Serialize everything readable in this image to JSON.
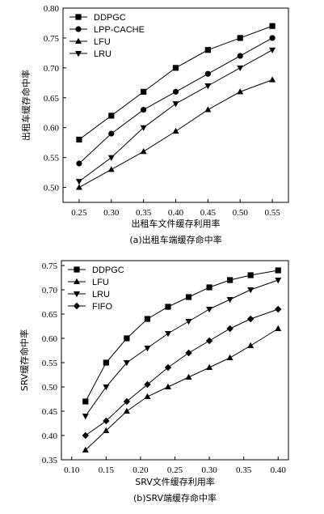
{
  "chart_data": [
    {
      "type": "line",
      "caption": "(a)出租车端缓存命中率",
      "xlabel": "出租车文件缓存利用率",
      "ylabel": "出租车缓存命中率",
      "x": [
        0.25,
        0.3,
        0.35,
        0.4,
        0.45,
        0.5,
        0.55
      ],
      "xticks": [
        "0.25",
        "0.30",
        "0.35",
        "0.40",
        "0.45",
        "0.50",
        "0.55"
      ],
      "xlim": [
        0.225,
        0.575
      ],
      "ylim": [
        0.475,
        0.8
      ],
      "yticks": [
        "0.50",
        "0.55",
        "0.60",
        "0.65",
        "0.70",
        "0.75",
        "0.80"
      ],
      "grid": false,
      "legend_position": "top-left",
      "series": [
        {
          "name": "DDPGC",
          "marker": "square",
          "values": [
            0.58,
            0.62,
            0.66,
            0.7,
            0.73,
            0.75,
            0.77
          ]
        },
        {
          "name": "LPP-CACHE",
          "marker": "circle",
          "values": [
            0.54,
            0.59,
            0.63,
            0.66,
            0.69,
            0.72,
            0.75
          ]
        },
        {
          "name": "LFU",
          "marker": "triangle-up",
          "values": [
            0.5,
            0.53,
            0.56,
            0.594,
            0.63,
            0.66,
            0.68
          ]
        },
        {
          "name": "LRU",
          "marker": "triangle-down",
          "values": [
            0.51,
            0.55,
            0.6,
            0.64,
            0.67,
            0.7,
            0.73
          ]
        }
      ]
    },
    {
      "type": "line",
      "caption": "(b)SRV端缓存命中率",
      "xlabel": "SRV文件缓存利用率",
      "ylabel": "SRV缓存命中率",
      "x": [
        0.12,
        0.15,
        0.18,
        0.21,
        0.24,
        0.27,
        0.3,
        0.33,
        0.36,
        0.4
      ],
      "xticks": [
        "0.10",
        "0.15",
        "0.20",
        "0.25",
        "0.30",
        "0.35",
        "0.40"
      ],
      "xlim": [
        0.085,
        0.415
      ],
      "ylim": [
        0.35,
        0.76
      ],
      "yticks": [
        "0.35",
        "0.40",
        "0.45",
        "0.50",
        "0.55",
        "0.60",
        "0.65",
        "0.70",
        "0.75"
      ],
      "grid": false,
      "legend_position": "top-left",
      "series": [
        {
          "name": "DDPGC",
          "marker": "square",
          "values": [
            0.47,
            0.55,
            0.6,
            0.64,
            0.665,
            0.685,
            0.705,
            0.72,
            0.73,
            0.74
          ]
        },
        {
          "name": "LFU",
          "marker": "triangle-up",
          "values": [
            0.37,
            0.41,
            0.45,
            0.48,
            0.5,
            0.52,
            0.54,
            0.56,
            0.585,
            0.62
          ]
        },
        {
          "name": "LRU",
          "marker": "triangle-down",
          "values": [
            0.44,
            0.5,
            0.55,
            0.58,
            0.61,
            0.635,
            0.66,
            0.68,
            0.7,
            0.72
          ]
        },
        {
          "name": "FIFO",
          "marker": "diamond",
          "values": [
            0.4,
            0.43,
            0.47,
            0.505,
            0.54,
            0.57,
            0.595,
            0.62,
            0.64,
            0.66
          ]
        }
      ]
    }
  ]
}
